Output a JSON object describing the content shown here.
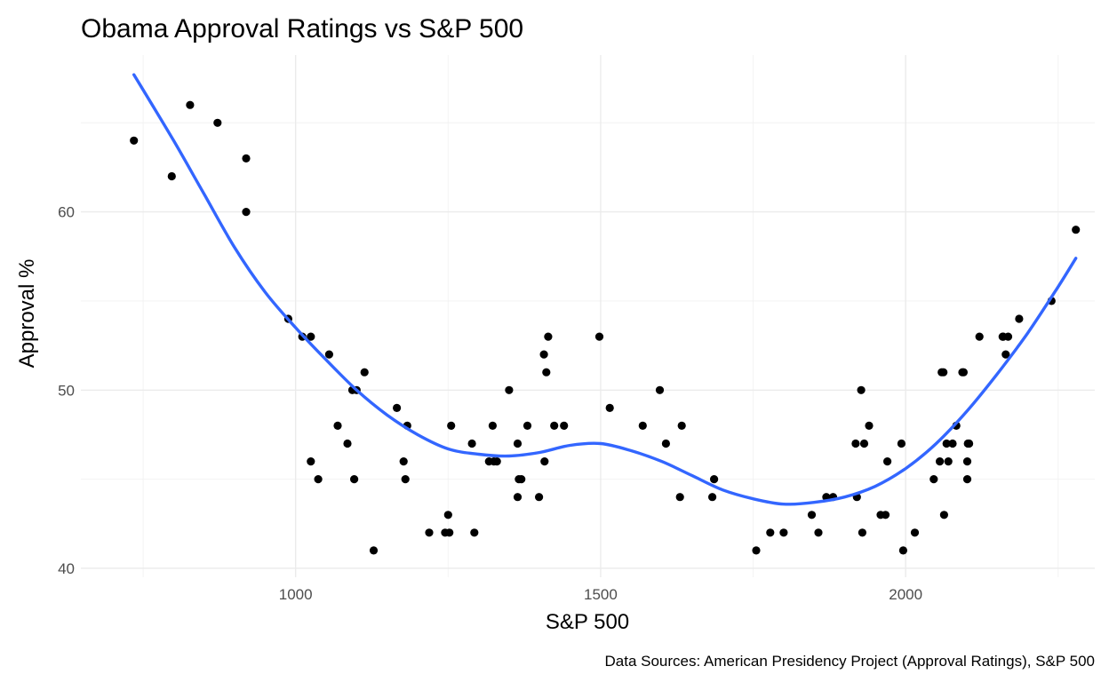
{
  "chart_data": {
    "type": "scatter",
    "title": "Obama Approval Ratings vs S&P 500",
    "xlabel": "S&P 500",
    "ylabel": "Approval %",
    "caption": "Data Sources: American Presidency Project (Approval Ratings), S&P 500",
    "xlim": [
      648,
      2310
    ],
    "ylim": [
      39.5,
      68.8
    ],
    "x_ticks": [
      1000,
      1500,
      2000
    ],
    "x_tick_labels": [
      "1000",
      "1500",
      "2000"
    ],
    "x_minor_ticks": [
      750,
      1250,
      1750,
      2250
    ],
    "y_ticks": [
      40,
      50,
      60
    ],
    "y_tick_labels": [
      "40",
      "50",
      "60"
    ],
    "y_minor_ticks": [
      45,
      55,
      65
    ],
    "grid": true,
    "points": {
      "color": "#000000",
      "x": [
        735,
        797,
        827,
        872,
        919,
        919,
        988,
        1011,
        1025,
        1025,
        1037,
        1055,
        1069,
        1085,
        1093,
        1096,
        1100,
        1113,
        1128,
        1166,
        1177,
        1180,
        1183,
        1219,
        1245,
        1250,
        1252,
        1255,
        1289,
        1293,
        1317,
        1323,
        1325,
        1330,
        1350,
        1364,
        1364,
        1366,
        1370,
        1380,
        1399,
        1407,
        1408,
        1411,
        1414,
        1424,
        1440,
        1498,
        1515,
        1569,
        1597,
        1607,
        1630,
        1633,
        1683,
        1686,
        1755,
        1778,
        1800,
        1846,
        1857,
        1870,
        1881,
        1918,
        1920,
        1927,
        1929,
        1932,
        1940,
        1959,
        1967,
        1970,
        1993,
        1996,
        2015,
        2046,
        2056,
        2059,
        2062,
        2063,
        2067,
        2070,
        2077,
        2083,
        2093,
        2095,
        2101,
        2101,
        2102,
        2104,
        2121,
        2159,
        2160,
        2164,
        2168,
        2186,
        2239,
        2279
      ],
      "y": [
        64,
        62,
        66,
        65,
        63,
        60,
        54,
        53,
        46,
        53,
        45,
        52,
        48,
        47,
        50,
        45,
        50,
        51,
        41,
        49,
        46,
        45,
        48,
        42,
        42,
        43,
        42,
        48,
        47,
        42,
        46,
        48,
        46,
        46,
        50,
        47,
        44,
        45,
        45,
        48,
        44,
        52,
        46,
        51,
        53,
        48,
        48,
        53,
        49,
        48,
        50,
        47,
        44,
        48,
        44,
        45,
        41,
        42,
        42,
        43,
        42,
        44,
        44,
        47,
        44,
        50,
        42,
        47,
        48,
        43,
        43,
        46,
        47,
        41,
        42,
        45,
        46,
        51,
        51,
        43,
        47,
        46,
        47,
        48,
        51,
        51,
        45,
        46,
        47,
        47,
        53,
        53,
        53,
        52,
        53,
        54,
        55,
        59
      ]
    },
    "smooth": {
      "method": "loess",
      "color": "#3366ff",
      "x": [
        735,
        800,
        850,
        900,
        950,
        1000,
        1050,
        1100,
        1150,
        1200,
        1250,
        1300,
        1350,
        1400,
        1450,
        1500,
        1550,
        1600,
        1650,
        1700,
        1750,
        1800,
        1850,
        1900,
        1950,
        2000,
        2050,
        2100,
        2150,
        2200,
        2250,
        2279
      ],
      "y": [
        67.7,
        64.0,
        61.0,
        58.0,
        55.5,
        53.5,
        51.7,
        50.0,
        48.6,
        47.5,
        46.7,
        46.4,
        46.3,
        46.5,
        46.9,
        47.0,
        46.6,
        46.0,
        45.2,
        44.4,
        43.9,
        43.6,
        43.7,
        44.0,
        44.6,
        45.6,
        47.0,
        48.8,
        50.9,
        53.2,
        55.8,
        57.4
      ]
    }
  }
}
